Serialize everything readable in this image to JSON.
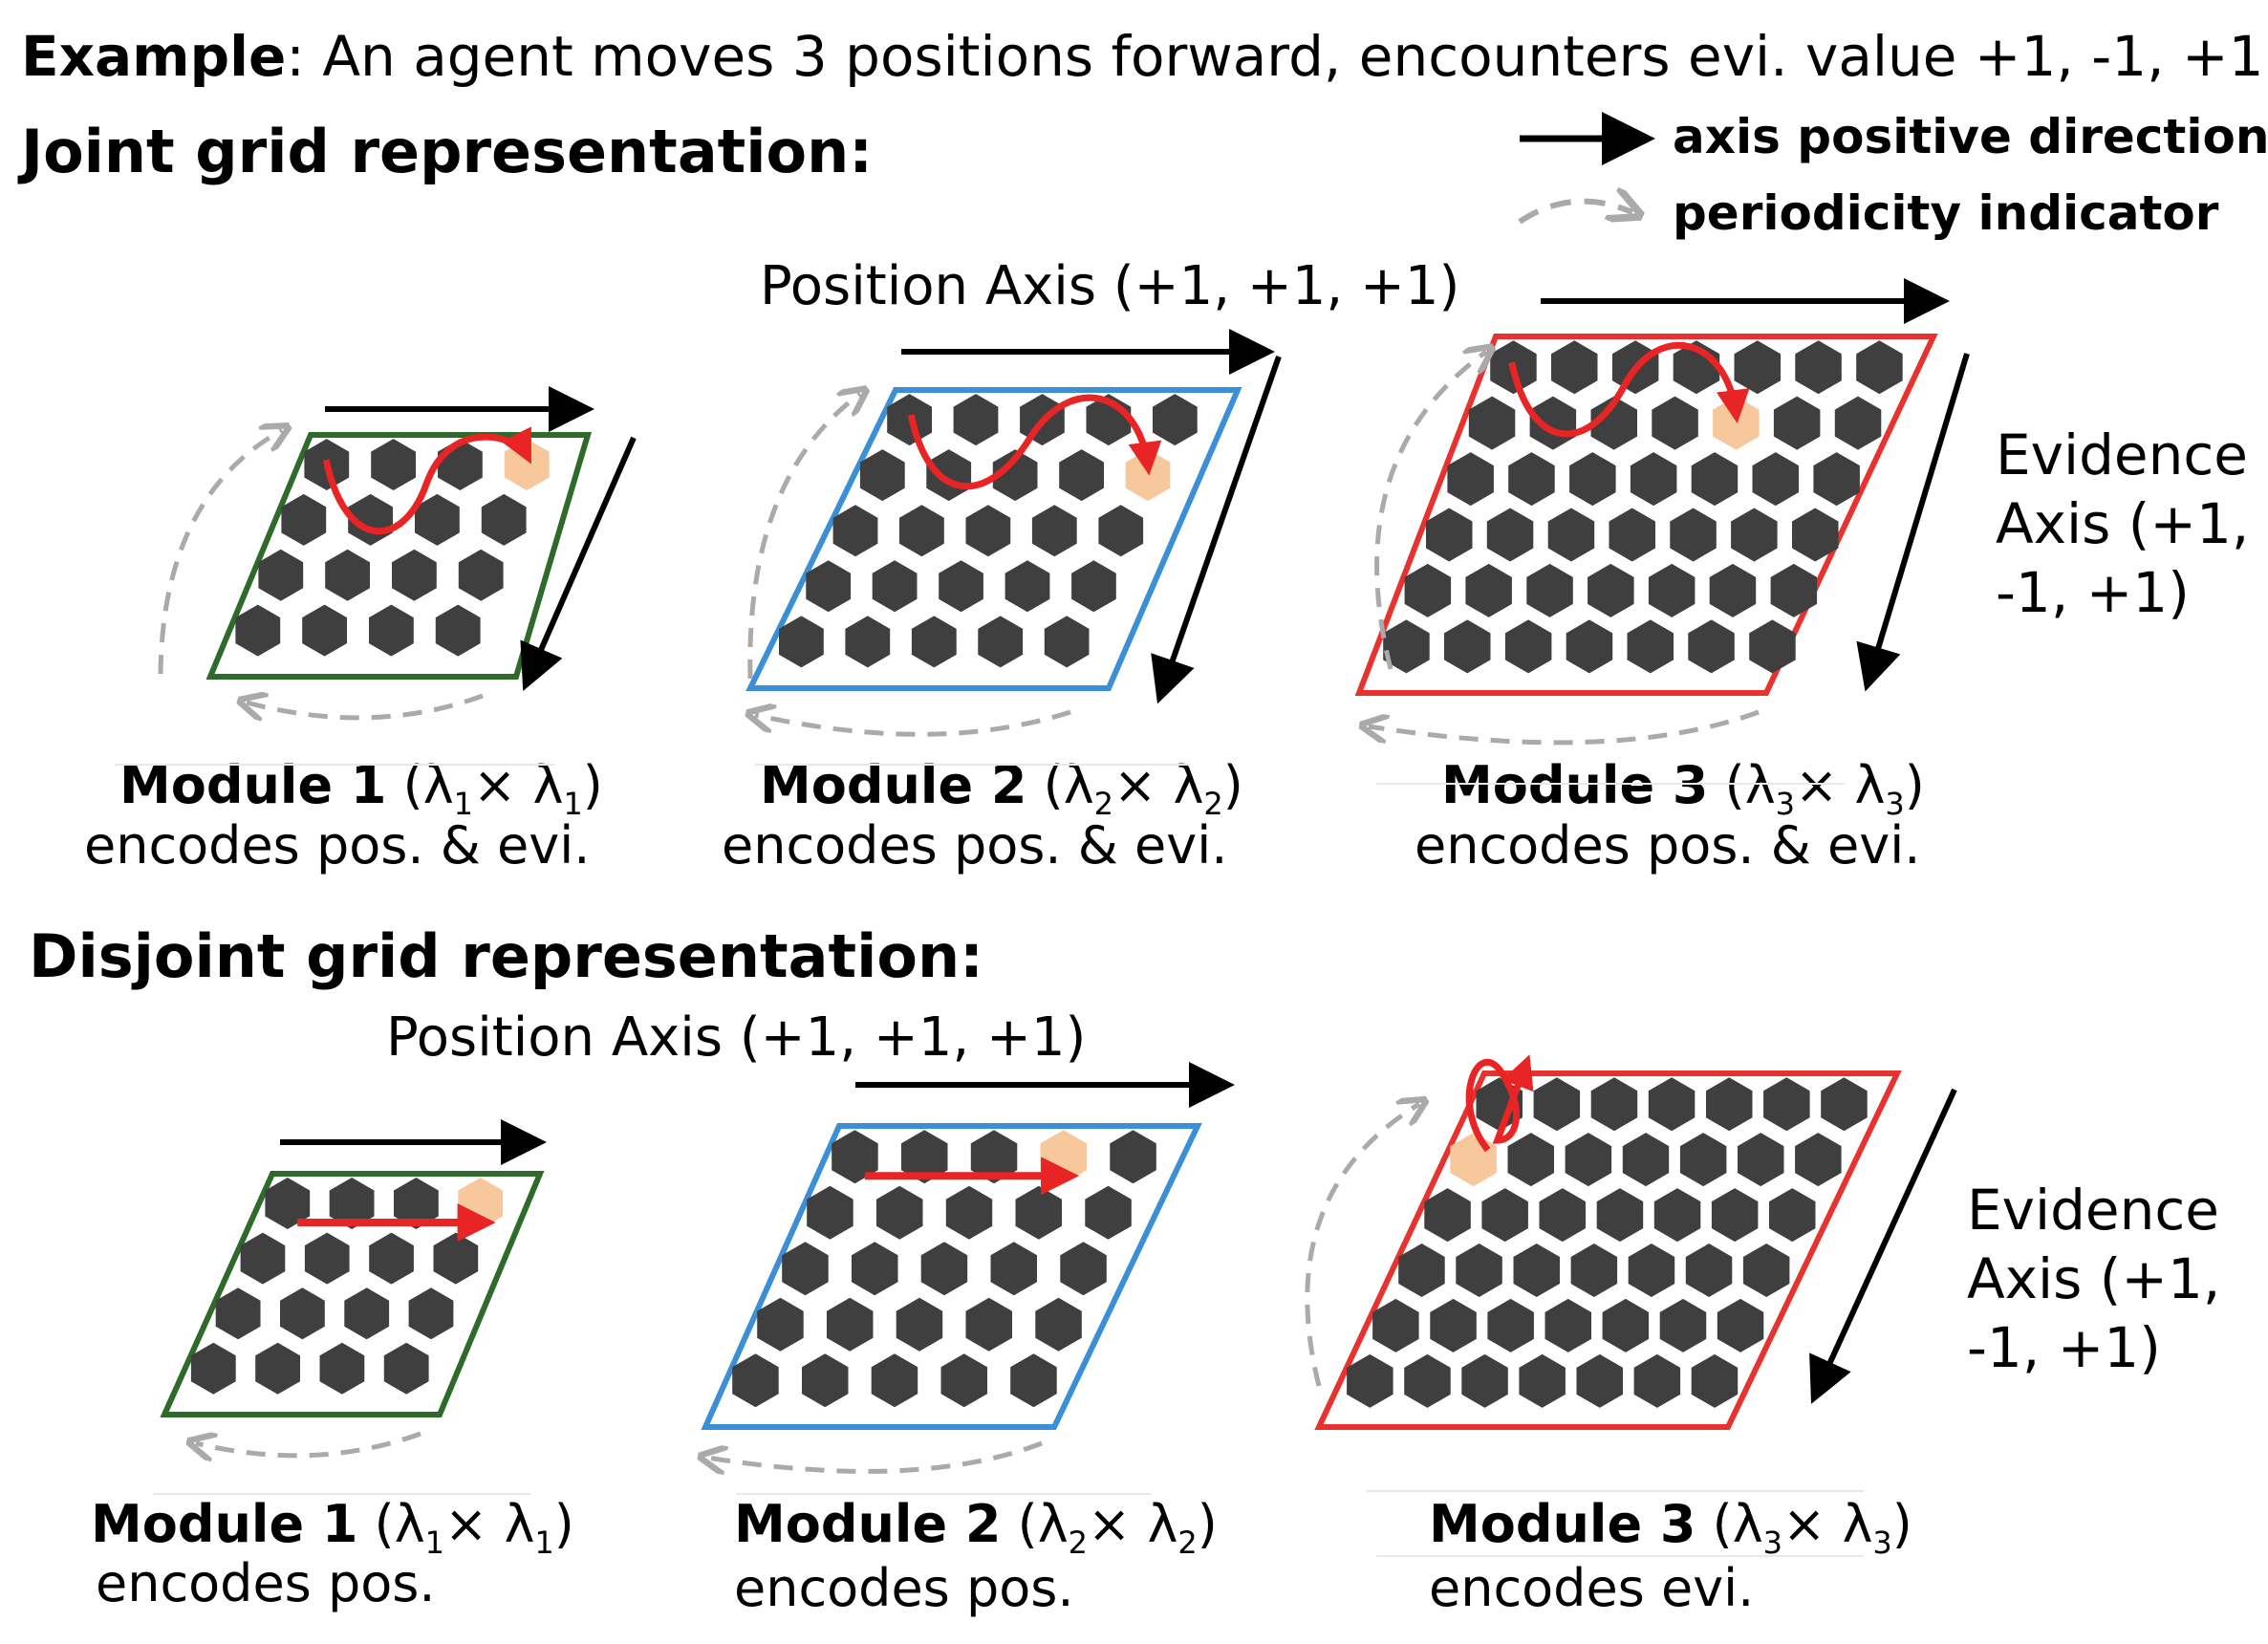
{
  "example": {
    "bold": "Example",
    "rest": ": An agent moves 3 positions forward, encounters evi. value +1, -1, +1."
  },
  "joint": {
    "heading": "Joint grid representation:",
    "position_axis": "Position Axis (+1, +1, +1)",
    "evidence_axis": [
      "Evidence",
      "Axis (+1,",
      "-1, +1)"
    ],
    "modules": [
      {
        "title": "Module 1",
        "sym": "λ",
        "sub": "1",
        "desc": "encodes pos. & evi."
      },
      {
        "title": "Module 2",
        "sym": "λ",
        "sub": "2",
        "desc": "encodes pos. & evi."
      },
      {
        "title": "Module 3",
        "sym": "λ",
        "sub": "3",
        "desc": "encodes pos. & evi."
      }
    ]
  },
  "disjoint": {
    "heading": "Disjoint grid representation:",
    "position_axis": "Position Axis (+1, +1, +1)",
    "evidence_axis": [
      "Evidence",
      "Axis (+1,",
      "-1, +1)"
    ],
    "modules": [
      {
        "title": "Module 1",
        "sym": "λ",
        "sub": "1",
        "desc": "encodes pos."
      },
      {
        "title": "Module 2",
        "sym": "λ",
        "sub": "2",
        "desc": "encodes pos."
      },
      {
        "title": "Module 3",
        "sym": "λ",
        "sub": "3",
        "desc": "encodes evi."
      }
    ]
  },
  "legend": {
    "axis_positive": "axis positive direction",
    "periodicity": "periodicity indicator"
  },
  "colors": {
    "module1": "#2e6b2a",
    "module2": "#3b8fd6",
    "module3": "#e8322d",
    "cell": "#3f3f3f",
    "highlight": "#f7c89b",
    "trajectory": "#e82424",
    "periodicity": "#aaaaaa"
  }
}
